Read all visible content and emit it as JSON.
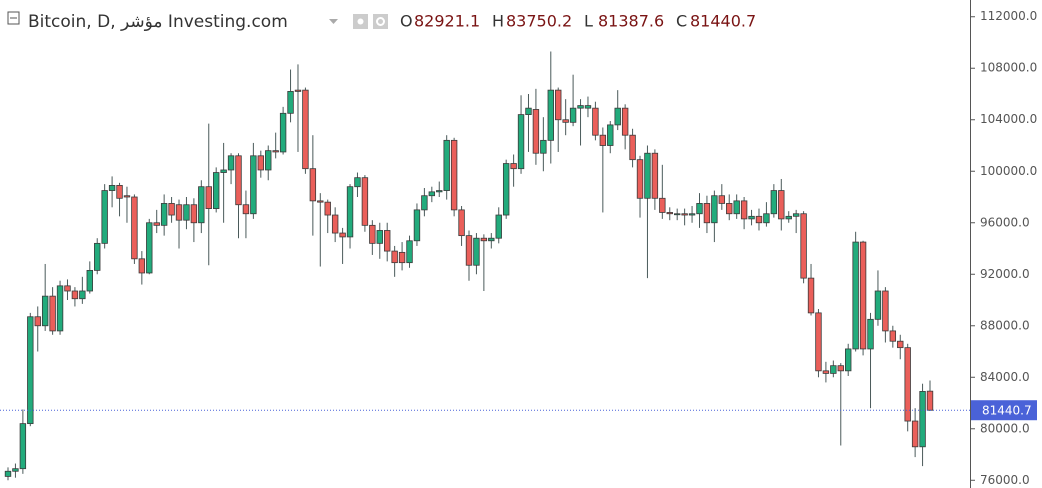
{
  "chart_data": {
    "type": "candlestick",
    "title": "Bitcoin, D, مؤشر Investing.com",
    "ohlc_labels": [
      "O",
      "H",
      "L",
      "C"
    ],
    "up_color": "#22ab7c",
    "down_color": "#ea5f5a",
    "ylim": [
      75400,
      113300
    ],
    "yticks": [
      {
        "value": 76000,
        "label": "76000.0"
      },
      {
        "value": 80000,
        "label": "80000.0"
      },
      {
        "value": 84000,
        "label": "84000.0"
      },
      {
        "value": 88000,
        "label": "88000.0"
      },
      {
        "value": 92000,
        "label": "92000.0"
      },
      {
        "value": 96000,
        "label": "96000.0"
      },
      {
        "value": 100000,
        "label": "100000.0"
      },
      {
        "value": 104000,
        "label": "104000.0"
      },
      {
        "value": 108000,
        "label": "108000.0"
      },
      {
        "value": 112000,
        "label": "112000.0"
      }
    ],
    "open": [
      76300,
      76700,
      76900,
      80400,
      88700,
      88000,
      90300,
      87600,
      91100,
      90700,
      90100,
      90700,
      92300,
      94400,
      98500,
      98900,
      98100,
      98000,
      93200,
      92100,
      96000,
      95800,
      97500,
      97400,
      96200,
      97400,
      96000,
      98800,
      97100,
      99900,
      100100,
      101200,
      97400,
      96700,
      101200,
      100100,
      101600,
      101500,
      104500,
      106300,
      106300,
      100200,
      97700,
      97600,
      96600,
      95200,
      94900,
      98800,
      99500,
      95800,
      94400,
      95400,
      93800,
      93700,
      92900,
      94600,
      97000,
      98100,
      98400,
      98500,
      102400,
      97000,
      95000,
      92700,
      94800,
      94600,
      94800,
      96600,
      100600,
      100200,
      104400,
      104800,
      101400,
      102400,
      106300,
      104000,
      103800,
      104900,
      104900,
      104900,
      102800,
      102000,
      103600,
      104900,
      102800,
      100900,
      97900,
      101400,
      97900,
      96800,
      96700,
      96700,
      96600,
      96700,
      97500,
      96000,
      98100,
      97500,
      96700,
      97700,
      96300,
      96500,
      96000,
      96700,
      98500,
      96300,
      96500,
      96700,
      91700,
      89000,
      84500,
      84300,
      84900,
      84500,
      86200,
      94500,
      86200,
      88500,
      90700,
      87600,
      86800,
      86300,
      80600,
      78600,
      82921.1
    ],
    "high": [
      77000,
      77300,
      81500,
      89000,
      89500,
      92800,
      91000,
      91500,
      91600,
      91000,
      91800,
      93000,
      94800,
      99000,
      99600,
      99100,
      98800,
      98200,
      93800,
      96300,
      97000,
      98200,
      98000,
      97800,
      98000,
      97900,
      99300,
      103700,
      100300,
      102200,
      101400,
      101400,
      98500,
      102200,
      101600,
      102000,
      103000,
      105000,
      107900,
      108300,
      106500,
      102800,
      98300,
      97800,
      97200,
      95600,
      99000,
      99900,
      99700,
      96200,
      96000,
      96000,
      94200,
      94500,
      95000,
      97500,
      98700,
      98800,
      99200,
      102800,
      102600,
      97300,
      95400,
      95200,
      95100,
      95200,
      97200,
      100900,
      101300,
      105900,
      106000,
      106400,
      104200,
      109300,
      106500,
      105600,
      107500,
      105600,
      105800,
      105400,
      103400,
      103900,
      106300,
      105200,
      103300,
      101200,
      102000,
      101700,
      100500,
      97200,
      97100,
      97100,
      97300,
      98300,
      98100,
      98500,
      99000,
      98200,
      98200,
      98000,
      97000,
      97100,
      97600,
      99000,
      99400,
      96900,
      97000,
      96900,
      92800,
      89300,
      85200,
      85300,
      85100,
      86600,
      95300,
      94600,
      89000,
      92300,
      91000,
      88000,
      87300,
      86600,
      81600,
      83500,
      83750.2
    ],
    "low": [
      76000,
      76200,
      76500,
      80200,
      86000,
      87600,
      87300,
      87300,
      90000,
      89500,
      89700,
      90500,
      92000,
      94000,
      97200,
      96500,
      96000,
      92800,
      91200,
      92000,
      95200,
      95000,
      96000,
      94000,
      95500,
      94500,
      95200,
      92700,
      96800,
      96000,
      99000,
      94800,
      94800,
      96300,
      99500,
      99300,
      101000,
      101300,
      103800,
      101500,
      99800,
      95000,
      92600,
      95200,
      94500,
      92800,
      94000,
      98000,
      95300,
      93500,
      93200,
      93000,
      91800,
      92300,
      92500,
      94200,
      96500,
      97600,
      98000,
      97800,
      96500,
      94200,
      91500,
      92000,
      90700,
      94000,
      94400,
      96300,
      98800,
      99800,
      101500,
      100500,
      100000,
      100600,
      101500,
      102800,
      103500,
      102000,
      104200,
      102400,
      96800,
      101400,
      103200,
      101700,
      100300,
      96400,
      91700,
      97000,
      96300,
      96200,
      96200,
      95800,
      96000,
      95600,
      95200,
      94500,
      97000,
      96200,
      96300,
      95500,
      95800,
      95400,
      95700,
      96400,
      95400,
      96000,
      95200,
      91300,
      88800,
      84000,
      83600,
      84000,
      78700,
      84100,
      86000,
      85700,
      81600,
      88000,
      86700,
      86300,
      85400,
      79800,
      77800,
      77100,
      81387.6
    ],
    "close": [
      76700,
      76900,
      80400,
      88700,
      88000,
      90300,
      87600,
      91100,
      90700,
      90100,
      90700,
      92300,
      94400,
      98500,
      98900,
      97900,
      98000,
      93200,
      92100,
      96000,
      95800,
      97500,
      96600,
      96200,
      97400,
      96000,
      98800,
      97100,
      99900,
      100100,
      101200,
      97400,
      96700,
      101200,
      100100,
      101600,
      101500,
      104500,
      106200,
      106200,
      100200,
      97700,
      97600,
      96600,
      95200,
      94900,
      98800,
      99500,
      95800,
      94400,
      95400,
      93800,
      92900,
      92900,
      94600,
      97000,
      98100,
      98400,
      98500,
      102400,
      97000,
      95000,
      92700,
      94800,
      94600,
      94800,
      96600,
      100600,
      100200,
      104400,
      104900,
      101400,
      102400,
      106300,
      104000,
      103800,
      104900,
      105100,
      105100,
      102800,
      102000,
      103600,
      104900,
      102800,
      100900,
      97900,
      101400,
      97900,
      96800,
      96700,
      96700,
      96600,
      96700,
      97500,
      96000,
      98100,
      97500,
      96700,
      97700,
      96300,
      96500,
      96000,
      96700,
      98500,
      96300,
      96500,
      96700,
      91700,
      89000,
      84500,
      84300,
      84900,
      84500,
      86200,
      94500,
      86200,
      88500,
      90700,
      87600,
      86800,
      86300,
      80600,
      78600,
      82900,
      81440.7
    ]
  }
}
